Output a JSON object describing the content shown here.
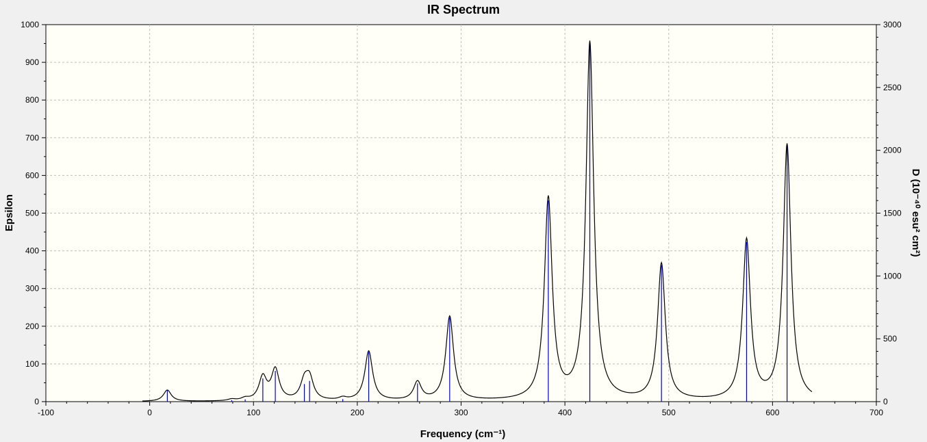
{
  "chart_data": {
    "type": "line",
    "title": "IR Spectrum",
    "xlabel": "Frequency (cm⁻¹)",
    "ylabel": "Epsilon",
    "y2label": "D (10⁻⁴⁰ esu² cm²)",
    "xlim": [
      -100,
      700
    ],
    "ylim": [
      0,
      1000
    ],
    "y2lim": [
      0,
      3000
    ],
    "xticks": [
      -100,
      0,
      100,
      200,
      300,
      400,
      500,
      600,
      700
    ],
    "yticks": [
      0,
      100,
      200,
      300,
      400,
      500,
      600,
      700,
      800,
      900,
      1000
    ],
    "y2ticks": [
      0,
      500,
      1000,
      1500,
      2000,
      2500,
      3000
    ],
    "grid": true,
    "background": "#fffff7",
    "curve_color": "#000000",
    "stick_color": "#0000cc",
    "spectrum_range": [
      -7,
      638
    ],
    "peaks": [
      {
        "freq": 17,
        "d": 90
      },
      {
        "freq": 79,
        "d": 12
      },
      {
        "freq": 92,
        "d": 18
      },
      {
        "freq": 109,
        "d": 185
      },
      {
        "freq": 121,
        "d": 245
      },
      {
        "freq": 149,
        "d": 140
      },
      {
        "freq": 154,
        "d": 165
      },
      {
        "freq": 186,
        "d": 20
      },
      {
        "freq": 211,
        "d": 395
      },
      {
        "freq": 258,
        "d": 145
      },
      {
        "freq": 289,
        "d": 670
      },
      {
        "freq": 384,
        "d": 1600
      },
      {
        "freq": 424,
        "d": 2845
      },
      {
        "freq": 493,
        "d": 1085
      },
      {
        "freq": 575,
        "d": 1270
      },
      {
        "freq": 614,
        "d": 2035
      }
    ]
  }
}
